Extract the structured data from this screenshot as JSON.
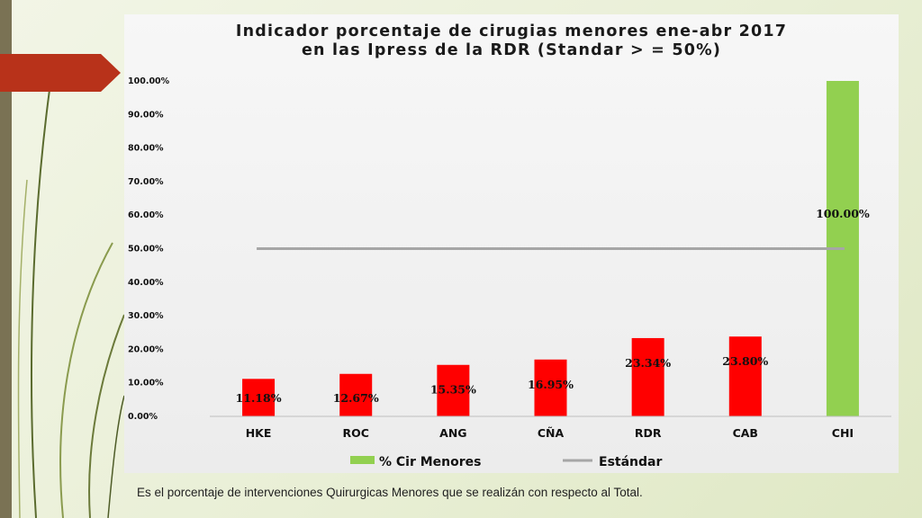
{
  "caption": "Es el porcentaje de intervenciones Quirurgicas Menores que se realizán con respecto al Total.",
  "colors": {
    "bar_red": "#ff0000",
    "bar_green": "#92d050",
    "standard_line": "#a6a6a6",
    "accent_arrow": "#b8321a"
  },
  "chart_data": {
    "type": "bar",
    "title_lines": [
      "Indicador porcentaje de cirugias menores ene-abr 2017",
      "en las Ipress de la RDR (Standar > = 50%)"
    ],
    "categories": [
      "HKE",
      "ROC",
      "ANG",
      "CÑA",
      "RDR",
      "CAB",
      "CHI"
    ],
    "values": [
      11.18,
      12.67,
      15.35,
      16.95,
      23.34,
      23.8,
      100.0
    ],
    "data_labels": [
      "11.18%",
      "12.67%",
      "15.35%",
      "16.95%",
      "23.34%",
      "23.80%",
      "100.00%"
    ],
    "ylim": [
      0,
      100
    ],
    "yticks": [
      0,
      10,
      20,
      30,
      40,
      50,
      60,
      70,
      80,
      90,
      100
    ],
    "ytick_labels": [
      "0.00%",
      "10.00%",
      "20.00%",
      "30.00%",
      "40.00%",
      "50.00%",
      "60.00%",
      "70.00%",
      "80.00%",
      "90.00%",
      "100.00%"
    ],
    "standard": 50,
    "series": [
      {
        "name": "% Cir Menores",
        "values": [
          11.18,
          12.67,
          15.35,
          16.95,
          23.34,
          23.8,
          100.0
        ]
      },
      {
        "name": "Estándar",
        "type": "line",
        "values": [
          50,
          50,
          50,
          50,
          50,
          50,
          50
        ]
      }
    ],
    "legend_position": "bottom",
    "grid": false
  }
}
